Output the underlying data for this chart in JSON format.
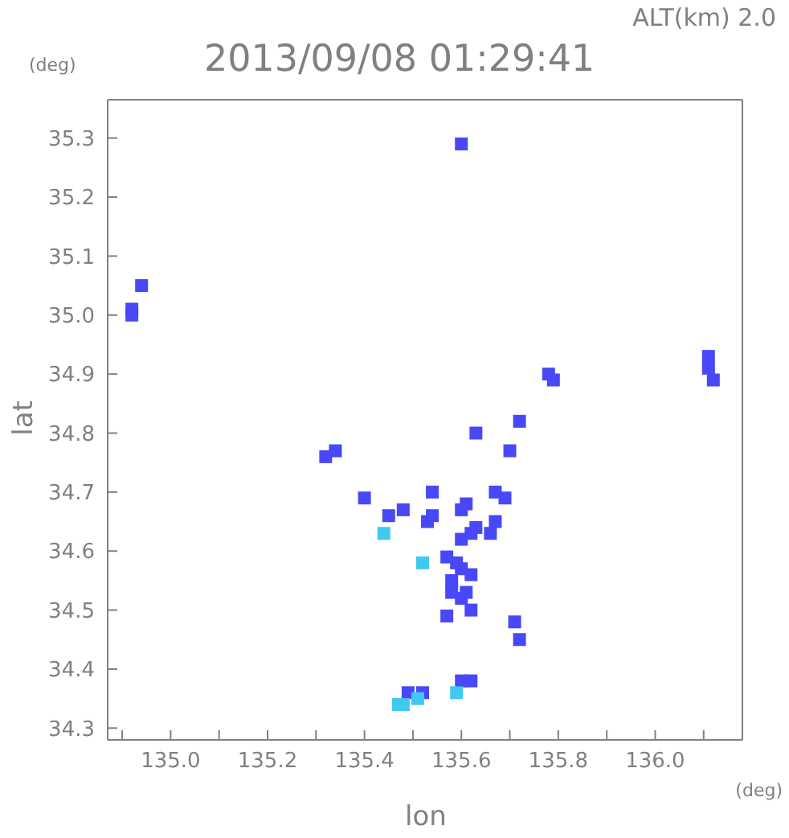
{
  "chart_data": {
    "type": "scatter",
    "title": "2013/09/08 01:29:41",
    "subtitle": "ALT(km) 2.0",
    "xlabel": "lon",
    "ylabel": "lat",
    "annotations": [
      "(deg)",
      "(deg)"
    ],
    "xlim": [
      134.87,
      136.18
    ],
    "ylim": [
      34.28,
      35.365
    ],
    "xticks": [
      {
        "value": 134.9,
        "label": null
      },
      {
        "value": 135,
        "label": "135.0"
      },
      {
        "value": 135.1,
        "label": null
      },
      {
        "value": 135.2,
        "label": "135.2"
      },
      {
        "value": 135.3,
        "label": null
      },
      {
        "value": 135.4,
        "label": "135.4"
      },
      {
        "value": 135.5,
        "label": null
      },
      {
        "value": 135.6,
        "label": "135.6"
      },
      {
        "value": 135.7,
        "label": null
      },
      {
        "value": 135.8,
        "label": "135.8"
      },
      {
        "value": 135.9,
        "label": null
      },
      {
        "value": 136,
        "label": "136.0"
      },
      {
        "value": 136.1,
        "label": null
      }
    ],
    "yticks": [
      34.3,
      34.4,
      34.5,
      34.6,
      34.7,
      34.8,
      34.9,
      {
        "value": 35,
        "label": "35.0"
      },
      35.1,
      35.2,
      35.3
    ],
    "grid": false,
    "marker": "square",
    "series": [
      {
        "color": "#4848f8",
        "x": [
          135.6,
          134.92,
          134.94,
          134.92,
          135.78,
          135.79,
          136.11,
          136.11,
          136.12,
          135.72,
          135.63,
          135.32,
          135.34,
          135.7,
          135.4,
          135.54,
          135.61,
          135.67,
          135.69,
          135.45,
          135.48,
          135.54,
          135.53,
          135.6,
          135.63,
          135.66,
          135.67,
          135.62,
          135.6,
          135.59,
          135.57,
          135.6,
          135.62,
          135.58,
          135.58,
          135.6,
          135.61,
          135.62,
          135.57,
          135.71,
          135.72,
          135.6,
          135.62,
          135.52,
          135.49
        ],
        "values": [
          35.29,
          35.01,
          35.05,
          35.0,
          34.9,
          34.89,
          34.91,
          34.93,
          34.89,
          34.82,
          34.8,
          34.76,
          34.77,
          34.77,
          34.69,
          34.7,
          34.68,
          34.7,
          34.69,
          34.66,
          34.67,
          34.66,
          34.65,
          34.67,
          34.64,
          34.63,
          34.65,
          34.63,
          34.62,
          34.58,
          34.59,
          34.57,
          34.56,
          34.55,
          34.53,
          34.52,
          34.53,
          34.5,
          34.49,
          34.48,
          34.45,
          34.38,
          34.38,
          34.36,
          34.36
        ]
      },
      {
        "color": "#40c8f0",
        "x": [
          135.59,
          135.51,
          135.48,
          135.47,
          135.44,
          135.52
        ],
        "values": [
          34.36,
          34.35,
          34.34,
          34.34,
          34.63,
          34.58
        ]
      }
    ]
  }
}
